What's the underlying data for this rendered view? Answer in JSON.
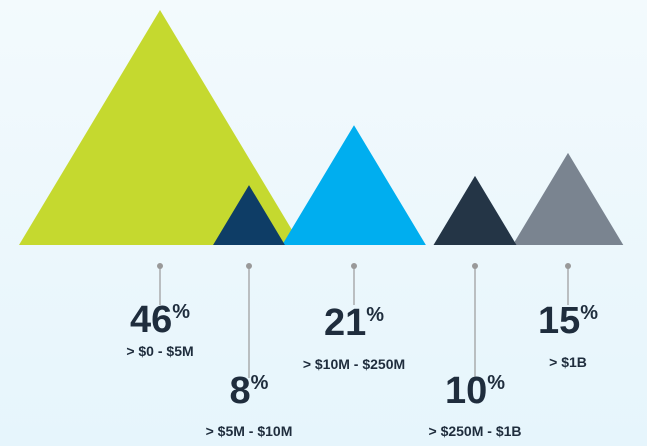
{
  "chart_data": {
    "type": "triangle",
    "categories": [
      "> $0 - $5M",
      "> $5M - $10M",
      "> $10M - $250M",
      "> $250M - $1B",
      "> $1B"
    ],
    "values": [
      46,
      8,
      21,
      10,
      15
    ],
    "value_suffix": "%",
    "colors": [
      "#c5d92f",
      "#0e3d66",
      "#00aeef",
      "#243546",
      "#7a8490"
    ]
  }
}
